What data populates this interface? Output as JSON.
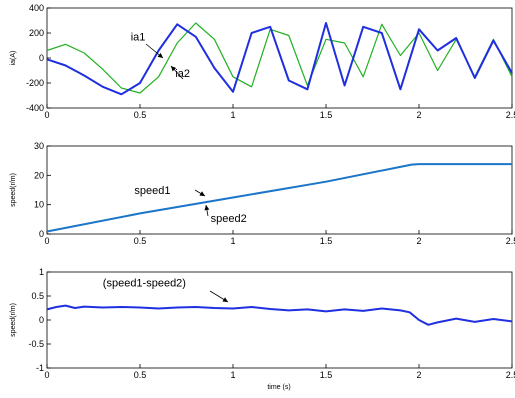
{
  "chart_data": [
    {
      "type": "line",
      "ylabel": "ia(A)",
      "xlim": [
        0,
        2.5
      ],
      "ylim": [
        -400,
        400
      ],
      "xticks": [
        "0",
        "0.5",
        "1",
        "1.5",
        "2",
        "2.5"
      ],
      "yticks": [
        "400",
        "200",
        "0",
        "-200",
        "-400"
      ],
      "series": [
        {
          "name": "ia1",
          "color": "#1f2fe0",
          "x": [
            0,
            0.1,
            0.2,
            0.3,
            0.4,
            0.5,
            0.6,
            0.7,
            0.8,
            0.9,
            1.0,
            1.1,
            1.2,
            1.3,
            1.4,
            1.5,
            1.6,
            1.7,
            1.8,
            1.9,
            2.0,
            2.1,
            2.2,
            2.3,
            2.4,
            2.5
          ],
          "y": [
            -10,
            -60,
            -140,
            -230,
            -290,
            -200,
            60,
            270,
            170,
            -80,
            -270,
            200,
            250,
            -180,
            -250,
            280,
            -220,
            250,
            200,
            -250,
            230,
            60,
            160,
            -160,
            140,
            -120
          ]
        },
        {
          "name": "ia2",
          "color": "#22b022",
          "x": [
            0,
            0.1,
            0.2,
            0.3,
            0.4,
            0.5,
            0.6,
            0.7,
            0.8,
            0.9,
            1.0,
            1.1,
            1.2,
            1.3,
            1.4,
            1.5,
            1.6,
            1.7,
            1.8,
            1.9,
            2.0,
            2.1,
            2.2,
            2.3,
            2.4,
            2.5
          ],
          "y": [
            60,
            110,
            40,
            -90,
            -240,
            -280,
            -150,
            120,
            280,
            150,
            -150,
            -230,
            230,
            180,
            -220,
            150,
            120,
            -150,
            270,
            20,
            200,
            -100,
            150,
            -150,
            150,
            -150
          ]
        }
      ],
      "annotations": [
        {
          "text": "ia1",
          "x": 0.45,
          "y": 140
        },
        {
          "text": "ia2",
          "x": 0.69,
          "y": -150
        }
      ]
    },
    {
      "type": "line",
      "ylabel": "speed(r/m)",
      "xlim": [
        0,
        2.5
      ],
      "ylim": [
        0,
        35
      ],
      "xticks": [
        "0",
        "0.5",
        "1",
        "1.5",
        "2",
        "2.5"
      ],
      "yticks": [
        "30",
        "20",
        "10",
        "0"
      ],
      "series": [
        {
          "name": "speed1",
          "color": "#1b75c8",
          "x": [
            0,
            0.5,
            1.0,
            1.5,
            1.96,
            2.0,
            2.5
          ],
          "y": [
            1,
            8.2,
            14.5,
            20.8,
            27.6,
            27.8,
            27.8
          ]
        },
        {
          "name": "speed2",
          "color": "#43b8d8",
          "x": [
            0,
            0.5,
            1.0,
            1.5,
            1.96,
            2.0,
            2.5
          ],
          "y": [
            1,
            8.2,
            14.5,
            20.8,
            27.6,
            27.8,
            27.8
          ]
        }
      ],
      "annotations": [
        {
          "text": "speed1",
          "x": 0.47,
          "y": 16
        },
        {
          "text": "speed2",
          "x": 0.88,
          "y": 4.8
        }
      ]
    },
    {
      "type": "line",
      "ylabel": "speed(r/m)",
      "xlabel": "time (s)",
      "xlim": [
        0,
        2.5
      ],
      "ylim": [
        -1,
        1
      ],
      "xticks": [
        "0",
        "0.5",
        "1",
        "1.5",
        "2",
        "2.5"
      ],
      "yticks": [
        "1",
        "0.5",
        "0",
        "-0.5",
        "-1"
      ],
      "series": [
        {
          "name": "(speed1-speed2)",
          "color": "#2030e0",
          "x": [
            0,
            0.05,
            0.1,
            0.15,
            0.2,
            0.3,
            0.4,
            0.5,
            0.6,
            0.7,
            0.8,
            0.9,
            1.0,
            1.1,
            1.2,
            1.3,
            1.4,
            1.5,
            1.6,
            1.7,
            1.8,
            1.9,
            1.95,
            2.0,
            2.05,
            2.1,
            2.2,
            2.3,
            2.4,
            2.5
          ],
          "y": [
            0.22,
            0.27,
            0.3,
            0.25,
            0.28,
            0.26,
            0.27,
            0.26,
            0.24,
            0.26,
            0.27,
            0.25,
            0.24,
            0.27,
            0.23,
            0.2,
            0.22,
            0.18,
            0.22,
            0.19,
            0.24,
            0.2,
            0.16,
            0.0,
            -0.1,
            -0.05,
            0.03,
            -0.04,
            0.02,
            -0.03
          ]
        }
      ],
      "annotations": [
        {
          "text": "(speed1-speed2)",
          "x": 0.3,
          "y": 0.7
        }
      ]
    }
  ]
}
